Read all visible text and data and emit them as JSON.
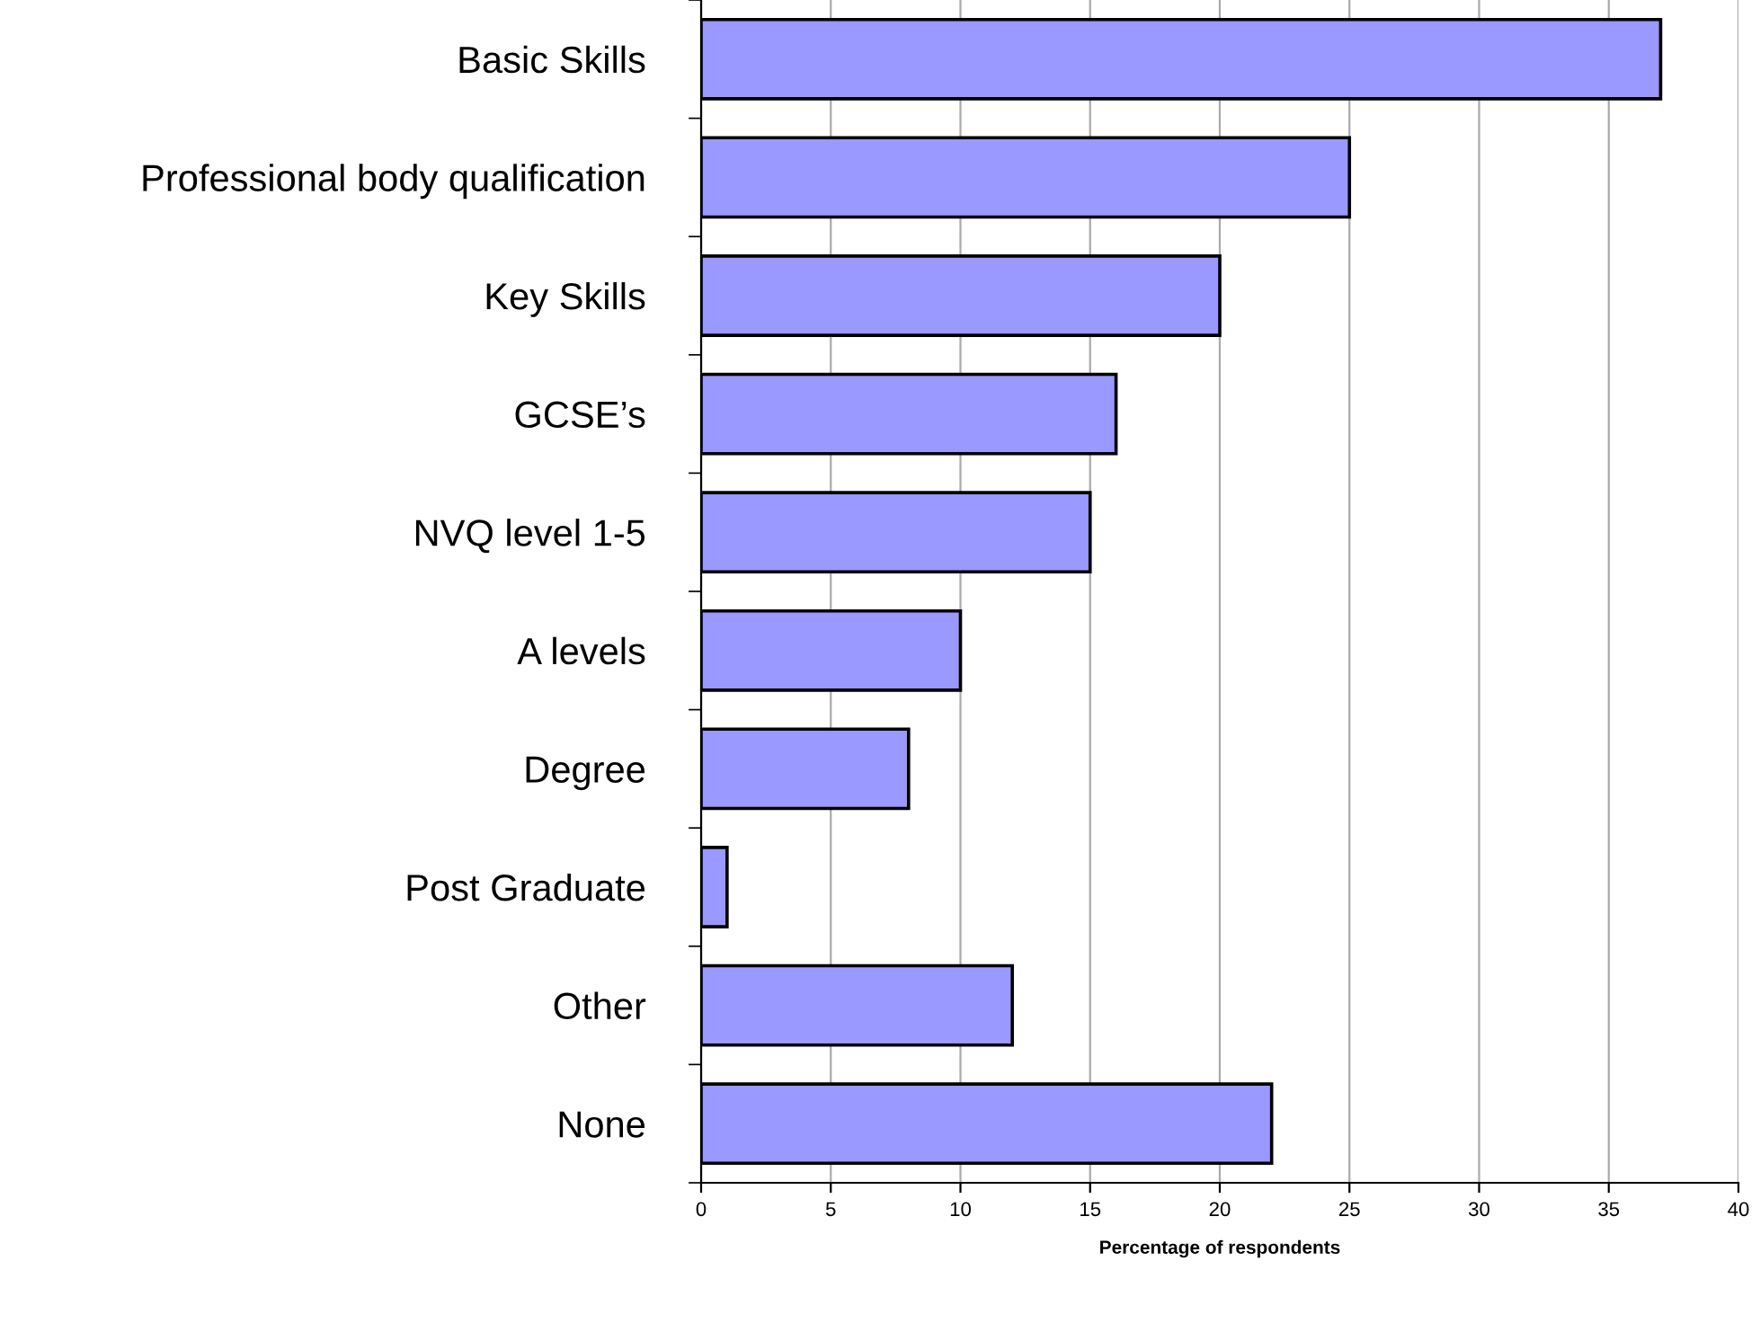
{
  "chart_data": {
    "type": "bar",
    "orientation": "horizontal",
    "xlabel": "Percentage of respondents",
    "categories": [
      "Basic Skills",
      "Professional body qualification",
      "Key Skills",
      "GCSE’s",
      "NVQ level 1-5",
      "A levels",
      "Degree",
      "Post Graduate",
      "Other",
      "None"
    ],
    "values": [
      37,
      25,
      20,
      16,
      15,
      10,
      8,
      1,
      12,
      22
    ],
    "color": "#9999ff",
    "xlim": [
      0,
      40
    ],
    "xticks": [
      0,
      5,
      10,
      15,
      20,
      25,
      30,
      35,
      40
    ],
    "grid": "x"
  }
}
